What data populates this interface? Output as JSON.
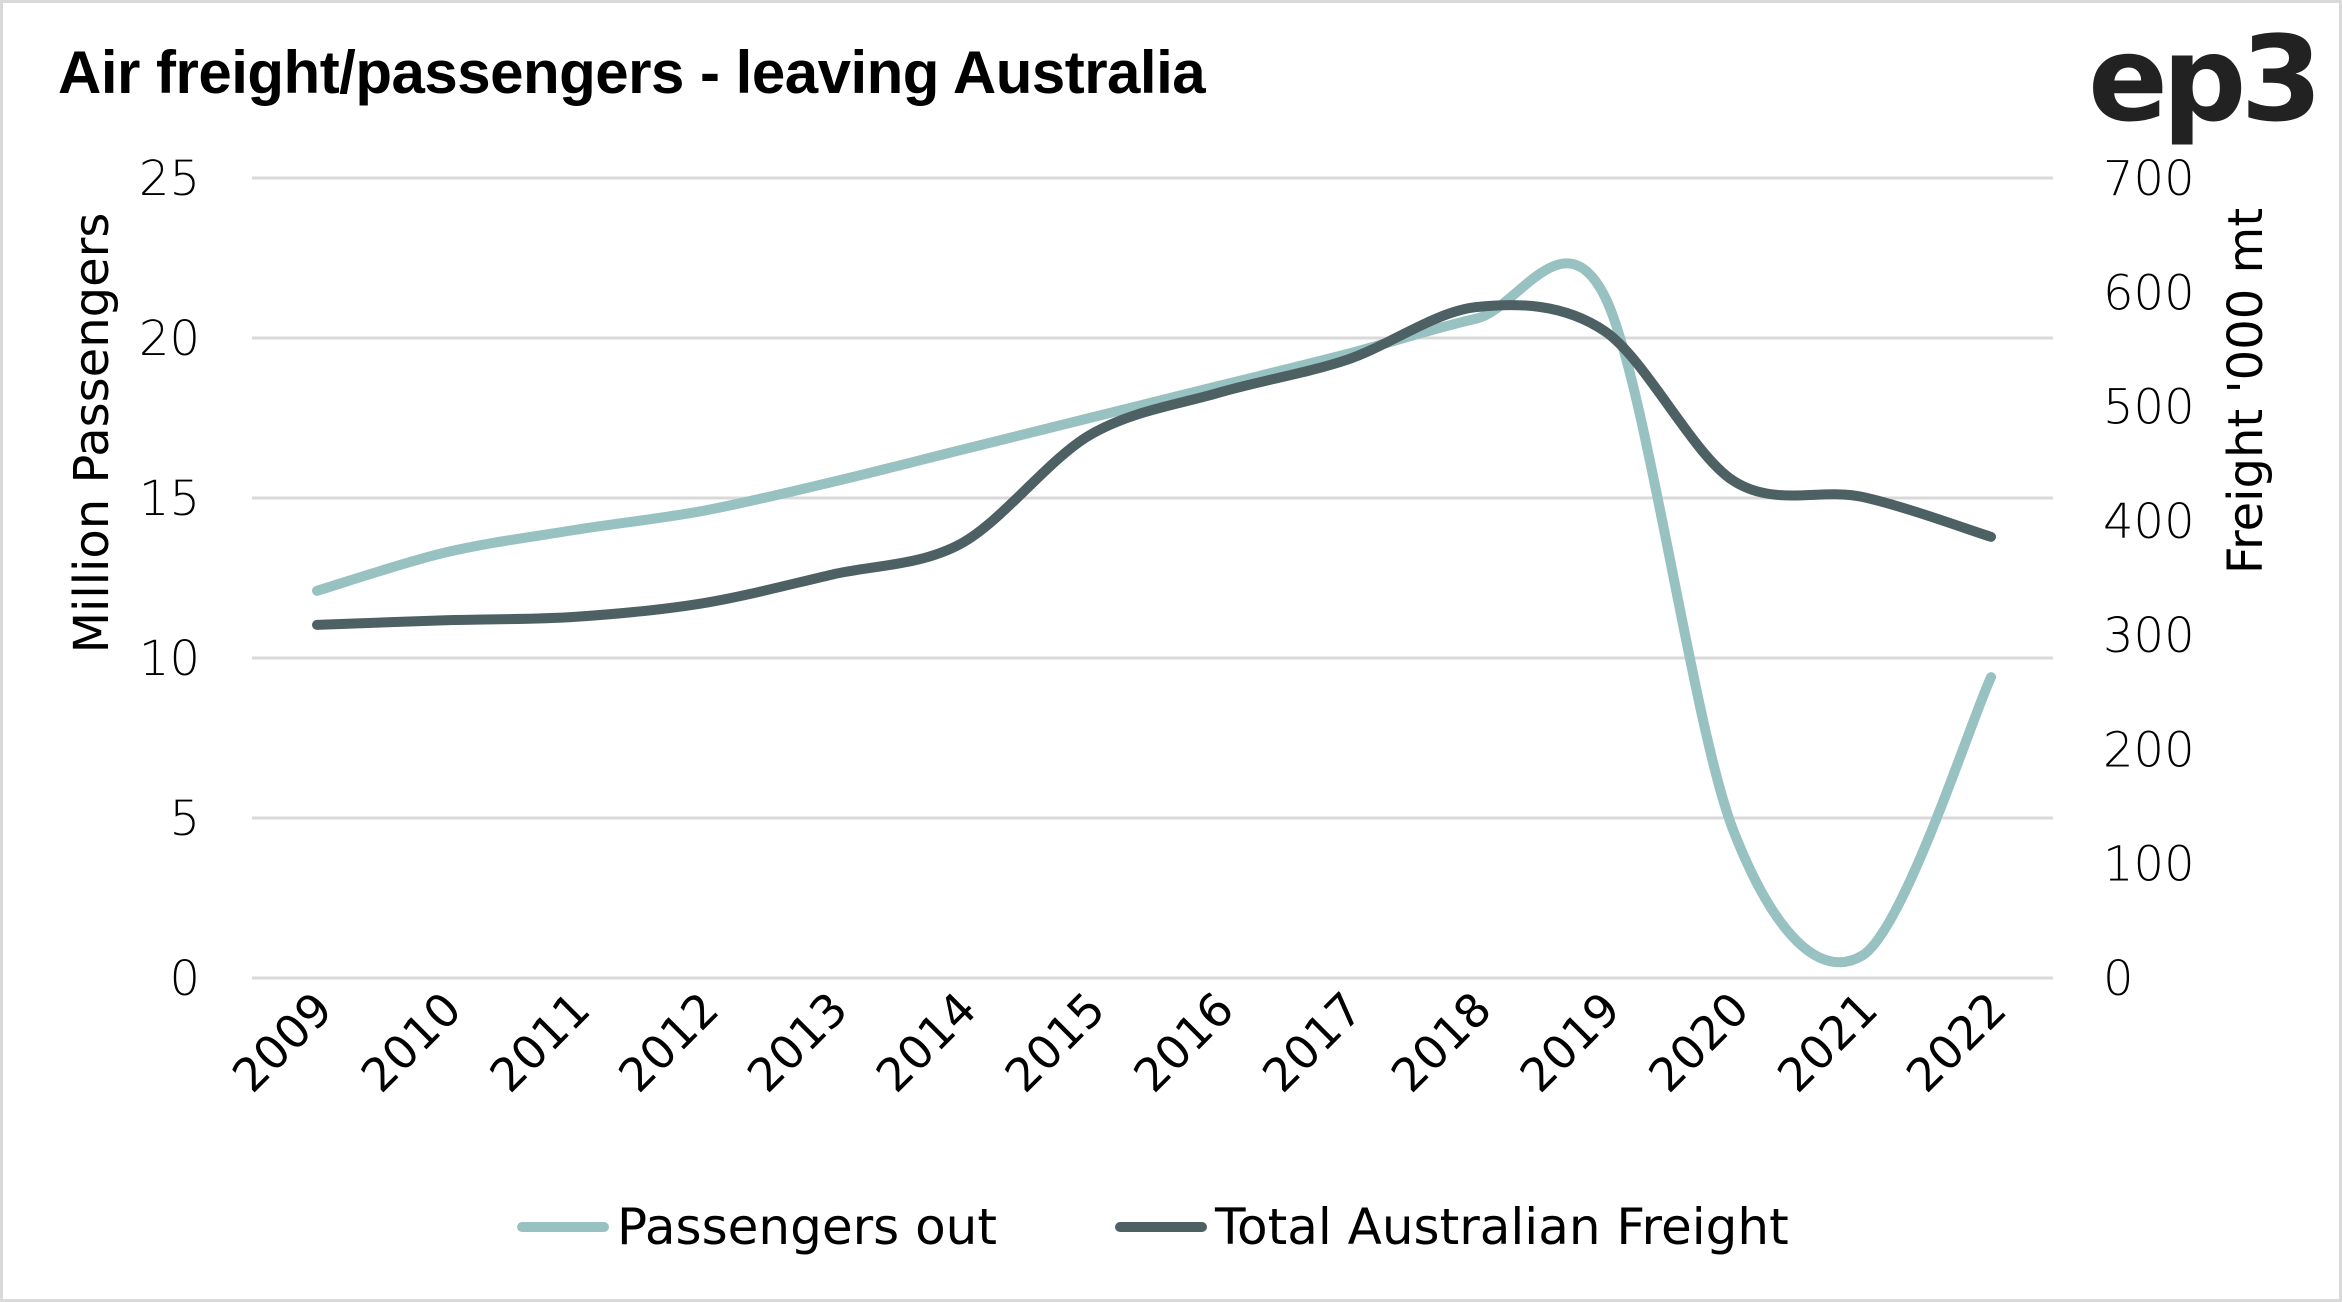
{
  "title": "Air freight/passengers - leaving Australia",
  "logo": "ep3",
  "colors": {
    "passengers": "#97c2c1",
    "freight": "#4d6063",
    "gridline": "#d9d9d9",
    "border": "#d9d9d9"
  },
  "chart_data": {
    "type": "line",
    "title": "Air freight/passengers - leaving Australia",
    "xlabel": "",
    "categories": [
      "2009",
      "2010",
      "2011",
      "2012",
      "2013",
      "2014",
      "2015",
      "2016",
      "2017",
      "2018",
      "2019",
      "2020",
      "2021",
      "2022"
    ],
    "y_left": {
      "label": "Million Passengers",
      "range": [
        0,
        25
      ],
      "ticks": [
        "0",
        "5",
        "10",
        "15",
        "20",
        "25"
      ]
    },
    "y_right": {
      "label": "Freight '000 mt",
      "range": [
        0,
        700
      ],
      "ticks": [
        "0",
        "100",
        "200",
        "300",
        "400",
        "500",
        "600",
        "700"
      ]
    },
    "grid": true,
    "smooth": true,
    "legend_position": "bottom",
    "series": [
      {
        "name": "Passengers out",
        "axis": "left",
        "color": "#97c2c1",
        "values": [
          12.1,
          13.3,
          14.0,
          14.6,
          15.5,
          16.5,
          17.5,
          18.5,
          19.5,
          20.6,
          21.3,
          4.6,
          0.7,
          9.4
        ]
      },
      {
        "name": "Total Australian Freight",
        "axis": "right",
        "color": "#4d6063",
        "values": [
          309,
          313,
          316,
          328,
          353,
          380,
          475,
          512,
          541,
          587,
          566,
          435,
          421,
          386
        ]
      }
    ]
  },
  "legend": [
    {
      "label": "Passengers out",
      "color": "#97c2c1"
    },
    {
      "label": "Total Australian Freight",
      "color": "#4d6063"
    }
  ]
}
